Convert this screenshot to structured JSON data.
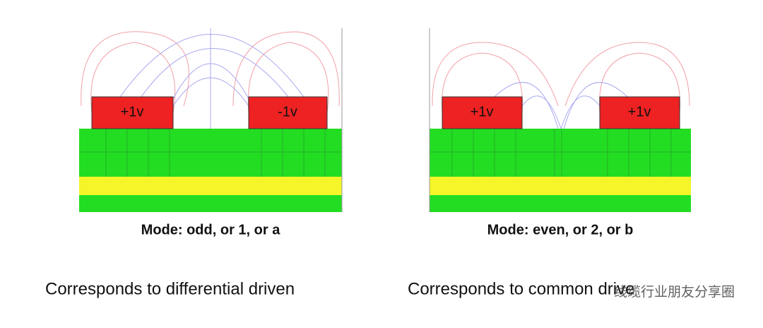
{
  "panels": [
    {
      "traces": [
        "+1v",
        "-1v"
      ],
      "caption": "Mode: odd, or 1, or a",
      "description": "Corresponds to differential driven"
    },
    {
      "traces": [
        "+1v",
        "+1v"
      ],
      "caption": "Mode: even, or 2, or b",
      "description": "Corresponds to common drive"
    }
  ],
  "watermark": "线缆行业朋友分享圈"
}
